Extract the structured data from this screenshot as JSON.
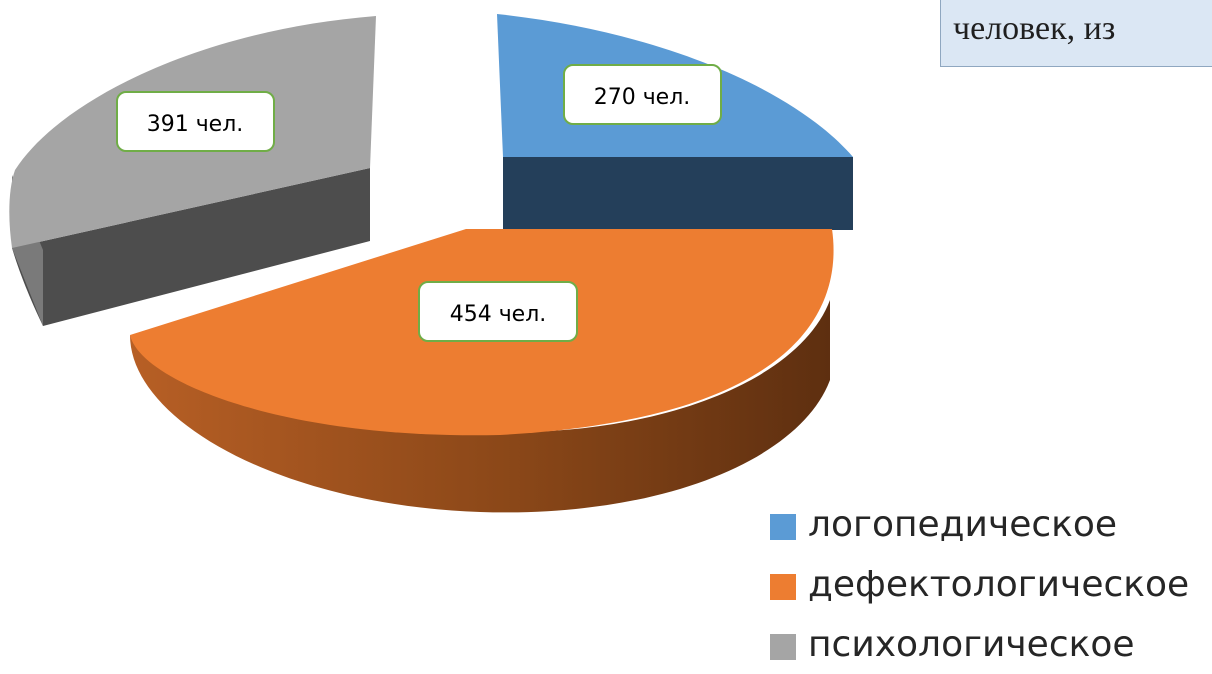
{
  "title_box": {
    "text": "человек, из"
  },
  "chart_data": {
    "type": "pie",
    "title": "",
    "grid": false,
    "legend_position": "bottom-right",
    "slices": [
      {
        "name": "логопедическое",
        "value": 270,
        "label": "270 чел.",
        "color": "#5b9bd5",
        "side_color": "#243f5a"
      },
      {
        "name": "дефектологическое",
        "value": 454,
        "label": "454 чел.",
        "color": "#ed7d31",
        "side_color": "#7a3c14"
      },
      {
        "name": "психологическое",
        "value": 391,
        "label": "391 чел.",
        "color": "#a5a5a5",
        "side_color": "#4d4d4d"
      }
    ],
    "data_label_border_color": "#70ad47"
  },
  "legend": {
    "items": [
      {
        "label": "логопедическое",
        "color": "#5b9bd5"
      },
      {
        "label": "дефектологическое",
        "color": "#ed7d31"
      },
      {
        "label": "психологическое",
        "color": "#a5a5a5"
      }
    ]
  }
}
